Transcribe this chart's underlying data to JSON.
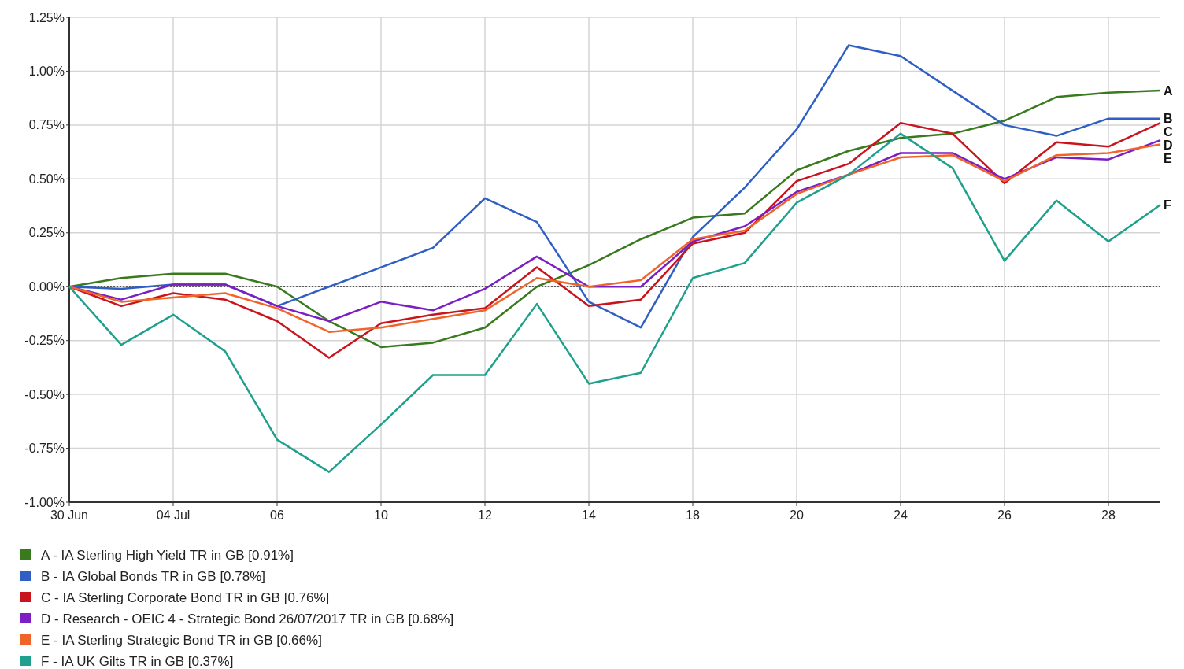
{
  "chart_data": {
    "type": "line",
    "categories": [
      "30 Jun",
      null,
      "04 Jul",
      null,
      "06",
      null,
      "10",
      null,
      "12",
      null,
      "14",
      null,
      "18",
      null,
      "20",
      null,
      "24",
      null,
      "26",
      null,
      "28",
      null
    ],
    "series": [
      {
        "name": "A - IA Sterling High Yield TR in GB [0.91%]",
        "color": "#3a7a1e",
        "values": [
          0,
          0.04,
          0.06,
          0.06,
          0.0,
          -0.16,
          -0.28,
          -0.26,
          -0.19,
          0.0,
          0.1,
          0.22,
          0.32,
          0.34,
          0.54,
          0.63,
          0.69,
          0.71,
          0.77,
          0.88,
          0.9,
          0.91
        ]
      },
      {
        "name": "B - IA Global Bonds TR in GB [0.78%]",
        "color": "#2f5fc4",
        "values": [
          0,
          -0.01,
          0.01,
          0.01,
          -0.09,
          0.0,
          0.09,
          0.18,
          0.41,
          0.3,
          -0.07,
          -0.19,
          0.23,
          0.46,
          0.73,
          1.12,
          1.07,
          0.91,
          0.75,
          0.7,
          0.78,
          0.78
        ]
      },
      {
        "name": "C - IA Sterling Corporate Bond TR in GB [0.76%]",
        "color": "#c8141c",
        "values": [
          0,
          -0.09,
          -0.03,
          -0.06,
          -0.16,
          -0.33,
          -0.17,
          -0.13,
          -0.1,
          0.09,
          -0.09,
          -0.06,
          0.2,
          0.25,
          0.49,
          0.57,
          0.76,
          0.71,
          0.48,
          0.67,
          0.65,
          0.76
        ]
      },
      {
        "name": "D - Research - OEIC 4 - Strategic Bond 26/07/2017 TR in GB [0.68%]",
        "color": "#7b1fc4",
        "values": [
          0,
          -0.06,
          0.01,
          0.01,
          -0.09,
          -0.16,
          -0.07,
          -0.11,
          -0.01,
          0.14,
          0.0,
          0.0,
          0.21,
          0.28,
          0.44,
          0.52,
          0.62,
          0.62,
          0.5,
          0.6,
          0.59,
          0.68
        ]
      },
      {
        "name": "E - IA Sterling Strategic Bond TR in GB [0.66%]",
        "color": "#f0642a",
        "values": [
          0,
          -0.07,
          -0.05,
          -0.03,
          -0.1,
          -0.21,
          -0.19,
          -0.15,
          -0.11,
          0.04,
          0.0,
          0.03,
          0.22,
          0.26,
          0.43,
          0.52,
          0.6,
          0.61,
          0.49,
          0.61,
          0.62,
          0.66
        ]
      },
      {
        "name": "F - IA UK Gilts TR in GB [0.37%]",
        "color": "#1fa08c",
        "values": [
          0,
          -0.27,
          -0.13,
          -0.3,
          -0.71,
          -0.86,
          -0.64,
          -0.41,
          -0.41,
          -0.08,
          -0.45,
          -0.4,
          0.04,
          0.11,
          0.39,
          0.52,
          0.71,
          0.55,
          0.12,
          0.4,
          0.21,
          0.38
        ]
      }
    ],
    "ylim": [
      -1.0,
      1.25
    ],
    "yticks": [
      {
        "value": -1.0,
        "label": "-1.00%"
      },
      {
        "value": -0.75,
        "label": "-0.75%"
      },
      {
        "value": -0.5,
        "label": "-0.50%"
      },
      {
        "value": -0.25,
        "label": "-0.25%"
      },
      {
        "value": 0,
        "label": "0.00%"
      },
      {
        "value": 0.25,
        "label": "0.25%"
      },
      {
        "value": 0.5,
        "label": "0.50%"
      },
      {
        "value": 0.75,
        "label": "0.75%"
      },
      {
        "value": 1.0,
        "label": "1.00%"
      },
      {
        "value": 1.25,
        "label": "1.25%"
      }
    ],
    "ref_lines": [
      {
        "axis": "y",
        "value": 0,
        "color": "#333333",
        "line_style": "dotted"
      }
    ],
    "annotations": [
      "A",
      "B",
      "C",
      "D",
      "E",
      "F"
    ],
    "grid": true,
    "legend": "bottom"
  }
}
